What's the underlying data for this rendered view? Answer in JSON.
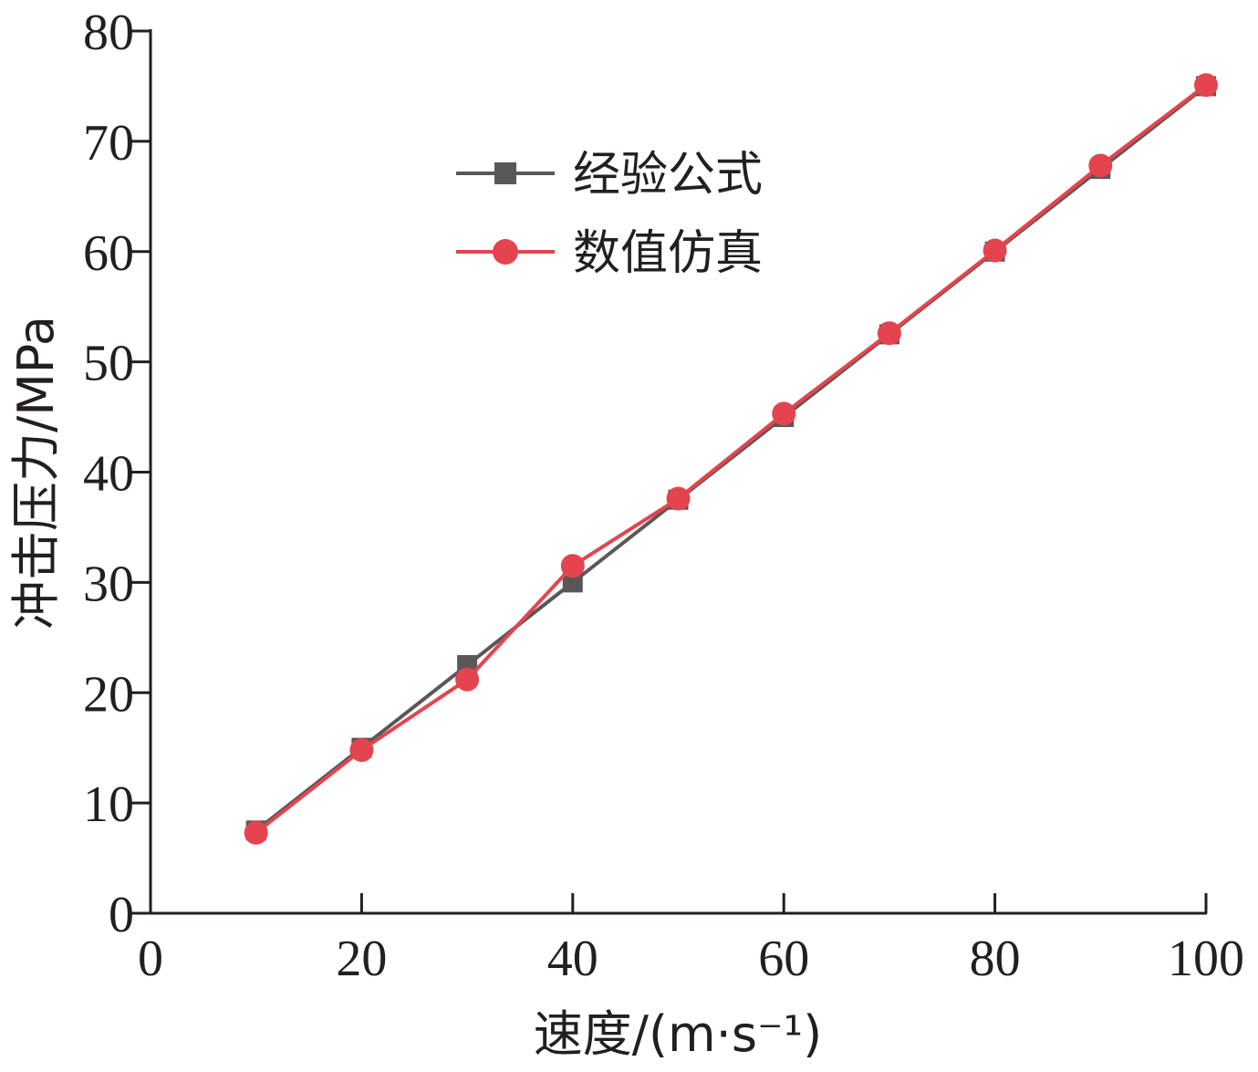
{
  "chart_data": {
    "type": "line",
    "title": "",
    "xlabel": "速度/(m·s⁻¹)",
    "ylabel": "冲击压力/MPa",
    "xlim": [
      0,
      100
    ],
    "ylim": [
      0,
      80
    ],
    "xticks": [
      0,
      20,
      40,
      60,
      80,
      100
    ],
    "yticks": [
      0,
      10,
      20,
      30,
      40,
      50,
      60,
      70,
      80
    ],
    "grid": false,
    "legend_position": "upper-left",
    "series": [
      {
        "name": "经验公式",
        "color": "#595757",
        "marker": "square",
        "x": [
          10,
          20,
          30,
          40,
          50,
          60,
          70,
          80,
          90,
          100
        ],
        "y": [
          7.5,
          15.0,
          22.5,
          30.0,
          37.5,
          45.0,
          52.5,
          60.0,
          67.5,
          75.0
        ]
      },
      {
        "name": "数值仿真",
        "color": "#e4444e",
        "marker": "circle",
        "x": [
          10,
          20,
          30,
          40,
          50,
          60,
          70,
          80,
          90,
          100
        ],
        "y": [
          7.3,
          14.8,
          21.2,
          31.5,
          37.6,
          45.3,
          52.6,
          60.1,
          67.8,
          75.1
        ]
      }
    ]
  }
}
